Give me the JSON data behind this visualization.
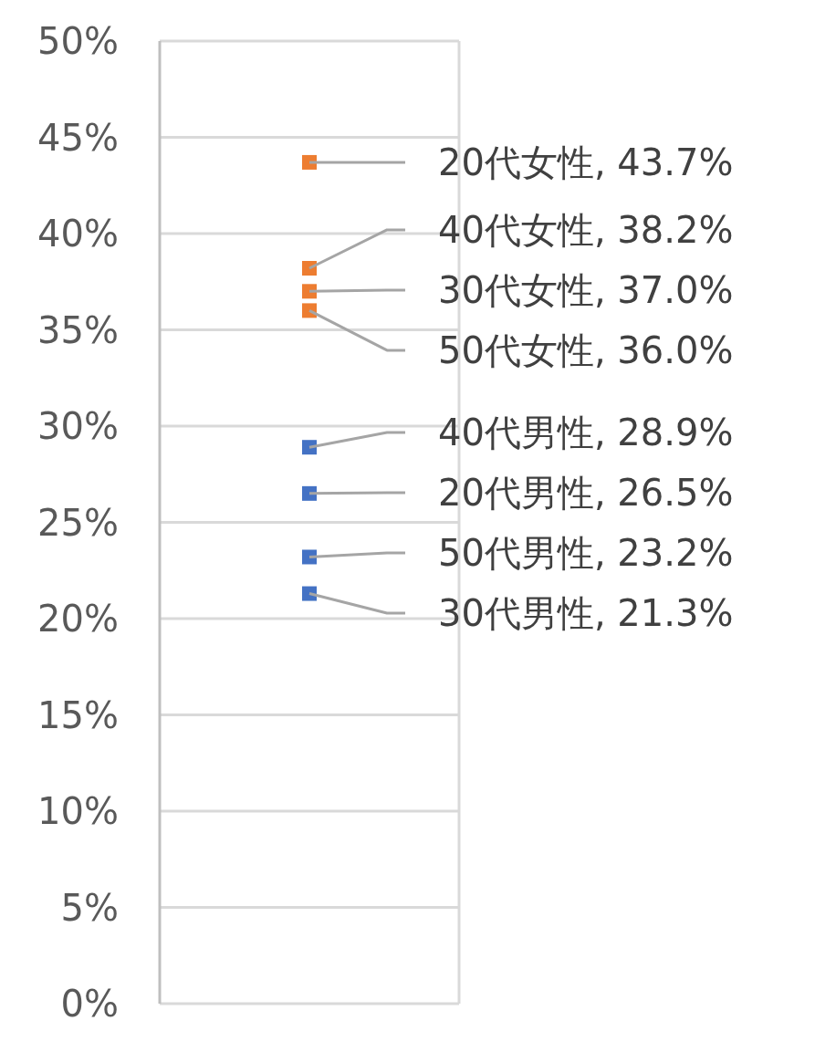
{
  "chart_data": {
    "type": "scatter",
    "categories": [
      null
    ],
    "ylim": [
      0,
      50
    ],
    "yticks": [
      {
        "value": 0,
        "label": "0%"
      },
      {
        "value": 5,
        "label": "5%"
      },
      {
        "value": 10,
        "label": "10%"
      },
      {
        "value": 15,
        "label": "15%"
      },
      {
        "value": 20,
        "label": "20%"
      },
      {
        "value": 25,
        "label": "25%"
      },
      {
        "value": 30,
        "label": "30%"
      },
      {
        "value": 35,
        "label": "35%"
      },
      {
        "value": 40,
        "label": "40%"
      },
      {
        "value": 45,
        "label": "45%"
      },
      {
        "value": 50,
        "label": "50%"
      }
    ],
    "grid": "y",
    "marker": "square",
    "series": [
      {
        "color": "#ed7d31",
        "values": [
          43.7
        ],
        "value_labels": [
          "20代女性, 43.7%"
        ]
      },
      {
        "color": "#ed7d31",
        "values": [
          38.2
        ],
        "value_labels": [
          "40代女性, 38.2%"
        ]
      },
      {
        "color": "#ed7d31",
        "values": [
          37.0
        ],
        "value_labels": [
          "30代女性, 37.0%"
        ]
      },
      {
        "color": "#ed7d31",
        "values": [
          36.0
        ],
        "value_labels": [
          "50代女性, 36.0%"
        ]
      },
      {
        "color": "#4472c4",
        "values": [
          28.9
        ],
        "value_labels": [
          "40代男性, 28.9%"
        ]
      },
      {
        "color": "#4472c4",
        "values": [
          26.5
        ],
        "value_labels": [
          "20代男性, 26.5%"
        ]
      },
      {
        "color": "#4472c4",
        "values": [
          23.2
        ],
        "value_labels": [
          "50代男性, 23.2%"
        ]
      },
      {
        "color": "#4472c4",
        "values": [
          21.3
        ],
        "value_labels": [
          "30代男性, 21.3%"
        ]
      }
    ]
  }
}
